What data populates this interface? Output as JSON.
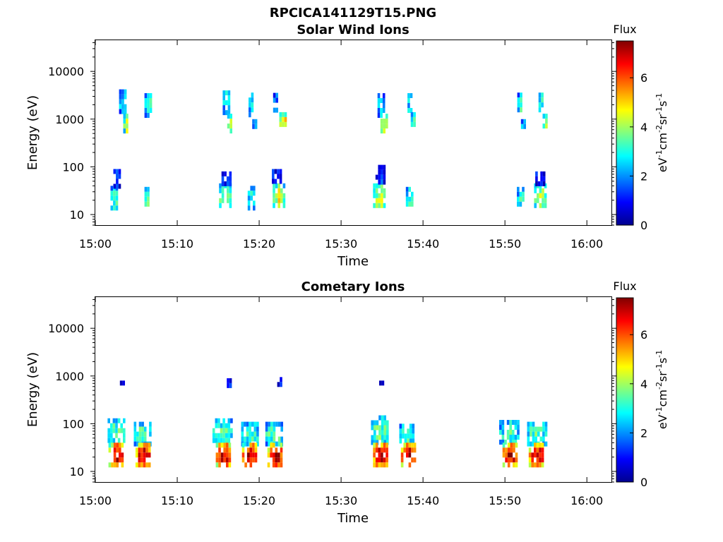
{
  "figure_title": "RPCICA141129T15.PNG",
  "colormap": [
    "#00008f",
    "#0000ff",
    "#0080ff",
    "#00ffff",
    "#80ff80",
    "#ffff00",
    "#ff8000",
    "#ff0000",
    "#800000"
  ],
  "chart_data": [
    {
      "type": "heatmap",
      "title": "Solar Wind Ions",
      "xlabel": "Time",
      "ylabel": "Energy (eV)",
      "xticks": [
        "15:00",
        "15:10",
        "15:20",
        "15:30",
        "15:40",
        "15:50",
        "16:00"
      ],
      "xlim_minutes": [
        0,
        63
      ],
      "yscale": "log",
      "yticks": [
        "10",
        "100",
        "1000",
        "10000"
      ],
      "ylim": [
        6,
        45000
      ],
      "colorbar": {
        "title": "Flux",
        "unit": "eV-1cm-2sr-1s-1",
        "ticks": [
          "0",
          "2",
          "4",
          "6"
        ],
        "range": [
          0,
          7.5
        ]
      },
      "clusters": [
        {
          "t": 2.3,
          "dt": 0.9,
          "e_low": 14,
          "e_high": 40,
          "flux": 3.2
        },
        {
          "t": 2.6,
          "dt": 0.8,
          "e_low": 40,
          "e_high": 90,
          "flux": 1.2
        },
        {
          "t": 3.3,
          "dt": 0.8,
          "e_low": 1400,
          "e_high": 4200,
          "flux": 2.8
        },
        {
          "t": 3.7,
          "dt": 0.6,
          "e_low": 550,
          "e_high": 1300,
          "flux": 4.3
        },
        {
          "t": 6.4,
          "dt": 0.8,
          "e_low": 1300,
          "e_high": 3500,
          "flux": 3.5
        },
        {
          "t": 6.3,
          "dt": 0.6,
          "e_low": 15,
          "e_high": 38,
          "flux": 3.8
        },
        {
          "t": 15.8,
          "dt": 1.4,
          "e_low": 14,
          "e_high": 45,
          "flux": 4.0
        },
        {
          "t": 16.0,
          "dt": 1.2,
          "e_low": 45,
          "e_high": 80,
          "flux": 1.5
        },
        {
          "t": 15.9,
          "dt": 0.7,
          "e_low": 1400,
          "e_high": 4000,
          "flux": 3.0
        },
        {
          "t": 16.4,
          "dt": 0.6,
          "e_low": 550,
          "e_high": 1300,
          "flux": 4.2
        },
        {
          "t": 19.0,
          "dt": 0.8,
          "e_low": 15,
          "e_high": 40,
          "flux": 3.0
        },
        {
          "t": 19.0,
          "dt": 0.6,
          "e_low": 1200,
          "e_high": 3600,
          "flux": 3.0
        },
        {
          "t": 19.4,
          "dt": 0.5,
          "e_low": 650,
          "e_high": 1000,
          "flux": 2.5
        },
        {
          "t": 22.3,
          "dt": 1.3,
          "e_low": 14,
          "e_high": 45,
          "flux": 4.5
        },
        {
          "t": 22.1,
          "dt": 1.1,
          "e_low": 45,
          "e_high": 90,
          "flux": 1.4
        },
        {
          "t": 22.0,
          "dt": 0.6,
          "e_low": 1400,
          "e_high": 4500,
          "flux": 2.0
        },
        {
          "t": 22.9,
          "dt": 0.9,
          "e_low": 600,
          "e_high": 1400,
          "flux": 5.0
        },
        {
          "t": 34.6,
          "dt": 1.4,
          "e_low": 14,
          "e_high": 45,
          "flux": 4.2
        },
        {
          "t": 34.8,
          "dt": 1.2,
          "e_low": 45,
          "e_high": 110,
          "flux": 1.3
        },
        {
          "t": 34.8,
          "dt": 0.7,
          "e_low": 1300,
          "e_high": 3500,
          "flux": 3.0
        },
        {
          "t": 35.2,
          "dt": 0.8,
          "e_low": 550,
          "e_high": 1300,
          "flux": 4.3
        },
        {
          "t": 38.3,
          "dt": 0.8,
          "e_low": 15,
          "e_high": 38,
          "flux": 3.3
        },
        {
          "t": 38.4,
          "dt": 0.6,
          "e_low": 1500,
          "e_high": 3500,
          "flux": 3.3
        },
        {
          "t": 38.8,
          "dt": 0.6,
          "e_low": 700,
          "e_high": 1400,
          "flux": 3.8
        },
        {
          "t": 51.8,
          "dt": 0.7,
          "e_low": 15,
          "e_high": 38,
          "flux": 3.0
        },
        {
          "t": 51.8,
          "dt": 0.6,
          "e_low": 1500,
          "e_high": 3600,
          "flux": 3.2
        },
        {
          "t": 52.2,
          "dt": 0.5,
          "e_low": 650,
          "e_high": 1000,
          "flux": 2.6
        },
        {
          "t": 54.2,
          "dt": 1.3,
          "e_low": 14,
          "e_high": 45,
          "flux": 4.0
        },
        {
          "t": 54.2,
          "dt": 1.0,
          "e_low": 45,
          "e_high": 80,
          "flux": 1.3
        },
        {
          "t": 54.4,
          "dt": 0.6,
          "e_low": 1400,
          "e_high": 3600,
          "flux": 3.2
        },
        {
          "t": 54.9,
          "dt": 0.6,
          "e_low": 550,
          "e_high": 1300,
          "flux": 4.5
        }
      ]
    },
    {
      "type": "heatmap",
      "title": "Cometary Ions",
      "xlabel": "Time",
      "ylabel": "Energy (eV)",
      "xticks": [
        "15:00",
        "15:10",
        "15:20",
        "15:30",
        "15:40",
        "15:50",
        "16:00"
      ],
      "xlim_minutes": [
        0,
        63
      ],
      "yscale": "log",
      "yticks": [
        "10",
        "100",
        "1000",
        "10000"
      ],
      "ylim": [
        6,
        45000
      ],
      "colorbar": {
        "title": "Flux",
        "unit": "eV-1cm-2sr-1s-1",
        "ticks": [
          "0",
          "2",
          "4",
          "6"
        ],
        "range": [
          0,
          7.5
        ]
      },
      "clusters": [
        {
          "t": 2.5,
          "dt": 2.0,
          "e_low": 40,
          "e_high": 130,
          "flux": 3.4
        },
        {
          "t": 2.5,
          "dt": 1.8,
          "e_low": 14,
          "e_high": 40,
          "flux": 7.0
        },
        {
          "t": 5.7,
          "dt": 2.0,
          "e_low": 40,
          "e_high": 110,
          "flux": 3.4
        },
        {
          "t": 5.8,
          "dt": 1.8,
          "e_low": 14,
          "e_high": 40,
          "flux": 7.0
        },
        {
          "t": 3.2,
          "dt": 0.4,
          "e_low": 650,
          "e_high": 800,
          "flux": 1.0
        },
        {
          "t": 15.4,
          "dt": 2.2,
          "e_low": 40,
          "e_high": 130,
          "flux": 3.3
        },
        {
          "t": 15.6,
          "dt": 1.8,
          "e_low": 14,
          "e_high": 40,
          "flux": 7.0
        },
        {
          "t": 18.8,
          "dt": 2.0,
          "e_low": 40,
          "e_high": 110,
          "flux": 3.2
        },
        {
          "t": 18.8,
          "dt": 1.8,
          "e_low": 14,
          "e_high": 40,
          "flux": 7.0
        },
        {
          "t": 21.8,
          "dt": 2.1,
          "e_low": 40,
          "e_high": 110,
          "flux": 3.5
        },
        {
          "t": 21.9,
          "dt": 1.8,
          "e_low": 14,
          "e_high": 40,
          "flux": 7.0
        },
        {
          "t": 16.3,
          "dt": 0.5,
          "e_low": 700,
          "e_high": 900,
          "flux": 1.0
        },
        {
          "t": 22.5,
          "dt": 0.6,
          "e_low": 700,
          "e_high": 950,
          "flux": 1.2
        },
        {
          "t": 34.7,
          "dt": 2.1,
          "e_low": 40,
          "e_high": 150,
          "flux": 3.5
        },
        {
          "t": 34.8,
          "dt": 1.8,
          "e_low": 14,
          "e_high": 40,
          "flux": 7.0
        },
        {
          "t": 38.0,
          "dt": 1.8,
          "e_low": 40,
          "e_high": 100,
          "flux": 3.3
        },
        {
          "t": 38.2,
          "dt": 1.8,
          "e_low": 14,
          "e_high": 40,
          "flux": 7.0
        },
        {
          "t": 34.9,
          "dt": 0.5,
          "e_low": 650,
          "e_high": 800,
          "flux": 1.0
        },
        {
          "t": 50.4,
          "dt": 2.2,
          "e_low": 40,
          "e_high": 120,
          "flux": 3.2
        },
        {
          "t": 50.6,
          "dt": 1.8,
          "e_low": 14,
          "e_high": 40,
          "flux": 7.0
        },
        {
          "t": 53.8,
          "dt": 2.2,
          "e_low": 40,
          "e_high": 110,
          "flux": 3.3
        },
        {
          "t": 53.8,
          "dt": 1.8,
          "e_low": 14,
          "e_high": 40,
          "flux": 7.0
        }
      ]
    }
  ]
}
